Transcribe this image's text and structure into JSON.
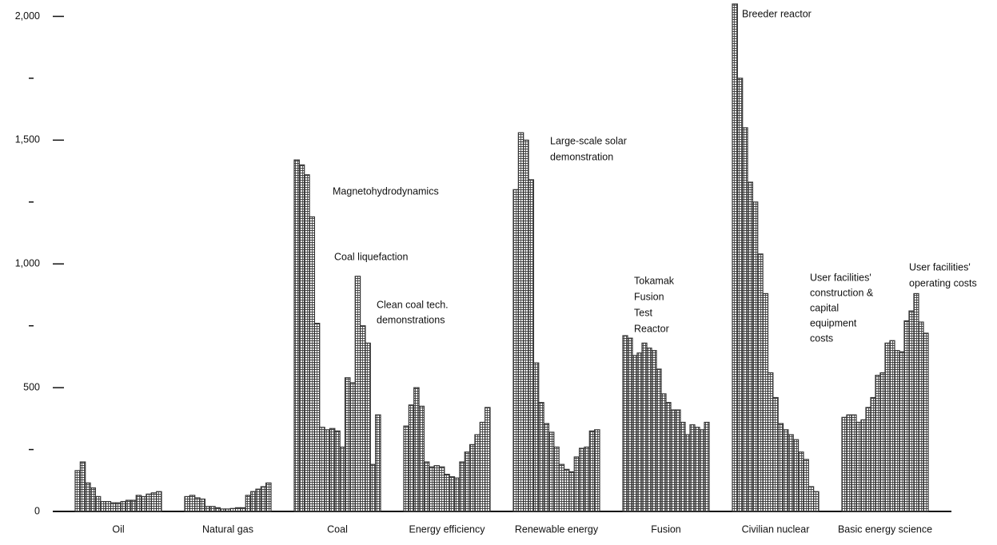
{
  "chart_data": {
    "type": "grouped-bars",
    "categories": [
      "Oil",
      "Natural gas",
      "Coal",
      "Energy efficiency",
      "Renewable energy",
      "Fusion",
      "Civilian nuclear",
      "Basic energy science"
    ],
    "values": [
      [
        165,
        200,
        115,
        95,
        60,
        40,
        40,
        35,
        35,
        40,
        45,
        45,
        65,
        60,
        70,
        75,
        80
      ],
      [
        60,
        65,
        55,
        50,
        20,
        20,
        15,
        10,
        10,
        12,
        15,
        15,
        65,
        80,
        90,
        100,
        115
      ],
      [
        1420,
        1400,
        1360,
        1190,
        760,
        340,
        330,
        335,
        325,
        260,
        540,
        520,
        950,
        750,
        680,
        190,
        390
      ],
      [
        345,
        430,
        500,
        425,
        200,
        180,
        185,
        180,
        150,
        140,
        135,
        200,
        240,
        270,
        310,
        360,
        420
      ],
      [
        1300,
        1530,
        1500,
        1340,
        600,
        440,
        355,
        320,
        260,
        190,
        170,
        160,
        220,
        255,
        260,
        325,
        330
      ],
      [
        710,
        700,
        630,
        640,
        680,
        660,
        650,
        575,
        475,
        440,
        410,
        410,
        360,
        310,
        350,
        340,
        330,
        360
      ],
      [
        2050,
        1750,
        1550,
        1330,
        1250,
        1040,
        880,
        560,
        460,
        355,
        330,
        310,
        290,
        240,
        210,
        100,
        80
      ],
      [
        380,
        390,
        390,
        360,
        370,
        420,
        460,
        550,
        560,
        680,
        690,
        650,
        645,
        770,
        810,
        880,
        765,
        720
      ]
    ],
    "color": "#333333",
    "ylim": [
      0,
      2050
    ],
    "yticks": [
      {
        "value": 0,
        "label": "0"
      },
      500,
      {
        "value": 1000,
        "label": "1,000"
      },
      {
        "value": 1500,
        "label": "1,500"
      },
      {
        "value": 2000,
        "label": "2,000"
      }
    ],
    "yminor_ticks": [
      250,
      750,
      1250,
      1750
    ],
    "annotations": [
      {
        "lines": [
          "Magnetohydrodynamics"
        ]
      },
      {
        "lines": [
          "Coal liquefaction"
        ]
      },
      {
        "lines": [
          "Clean coal tech.",
          "demonstrations"
        ]
      },
      {
        "lines": [
          "Large-scale solar",
          "demonstration"
        ]
      },
      {
        "lines": [
          "Tokamak",
          "Fusion",
          "Test",
          "Reactor"
        ]
      },
      {
        "lines": [
          "Breeder reactor"
        ]
      },
      {
        "lines": [
          "User facilities'",
          "construction &",
          "capital",
          "equipment",
          "costs"
        ]
      },
      {
        "lines": [
          "User facilities'",
          "operating costs"
        ]
      }
    ]
  }
}
